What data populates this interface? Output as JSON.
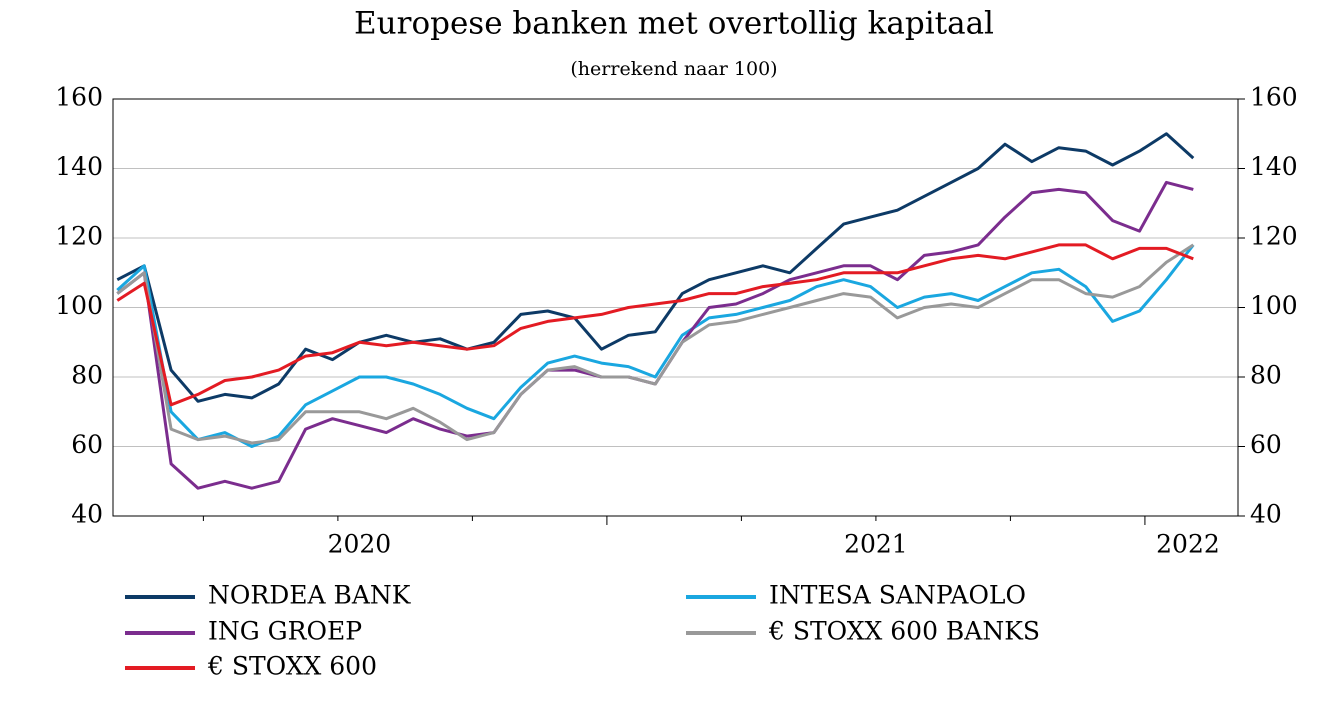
{
  "chart_data": {
    "type": "line",
    "title": "Europese banken met overtollig kapitaal",
    "subtitle": "(herrekend naar 100)",
    "x": [
      2020.09,
      2020.14,
      2020.19,
      2020.24,
      2020.29,
      2020.34,
      2020.39,
      2020.44,
      2020.49,
      2020.54,
      2020.59,
      2020.64,
      2020.69,
      2020.74,
      2020.79,
      2020.84,
      2020.89,
      2020.94,
      2020.99,
      2021.04,
      2021.09,
      2021.14,
      2021.19,
      2021.24,
      2021.29,
      2021.34,
      2021.39,
      2021.44,
      2021.49,
      2021.54,
      2021.59,
      2021.64,
      2021.69,
      2021.74,
      2021.79,
      2021.84,
      2021.89,
      2021.94,
      2021.99,
      2022.04,
      2022.09
    ],
    "series": [
      {
        "name": "NORDEA BANK",
        "color": "#0d3a66",
        "values": [
          108,
          112,
          82,
          73,
          75,
          74,
          78,
          88,
          85,
          90,
          92,
          90,
          91,
          88,
          90,
          98,
          99,
          97,
          88,
          92,
          93,
          104,
          108,
          110,
          112,
          110,
          117,
          124,
          126,
          128,
          132,
          136,
          140,
          147,
          142,
          146,
          145,
          141,
          145,
          150,
          143
        ]
      },
      {
        "name": "INTESA SANPAOLO",
        "color": "#1aa7e0",
        "values": [
          105,
          112,
          70,
          62,
          64,
          60,
          63,
          72,
          76,
          80,
          80,
          78,
          75,
          71,
          68,
          77,
          84,
          86,
          84,
          83,
          80,
          92,
          97,
          98,
          100,
          102,
          106,
          108,
          106,
          100,
          103,
          104,
          102,
          106,
          110,
          111,
          106,
          96,
          99,
          108,
          118
        ]
      },
      {
        "name": "ING GROEP",
        "color": "#7b2d8e",
        "values": [
          104,
          110,
          55,
          48,
          50,
          48,
          50,
          65,
          68,
          66,
          64,
          68,
          65,
          63,
          64,
          75,
          82,
          82,
          80,
          80,
          78,
          90,
          100,
          101,
          104,
          108,
          110,
          112,
          112,
          108,
          115,
          116,
          118,
          126,
          133,
          134,
          133,
          125,
          122,
          136,
          134
        ]
      },
      {
        "name": "€ STOXX 600 BANKS",
        "color": "#999999",
        "values": [
          104,
          110,
          65,
          62,
          63,
          61,
          62,
          70,
          70,
          70,
          68,
          71,
          67,
          62,
          64,
          75,
          82,
          83,
          80,
          80,
          78,
          90,
          95,
          96,
          98,
          100,
          102,
          104,
          103,
          97,
          100,
          101,
          100,
          104,
          108,
          108,
          104,
          103,
          106,
          113,
          118
        ]
      },
      {
        "name": "€ STOXX 600",
        "color": "#e31b23",
        "values": [
          102,
          107,
          72,
          75,
          79,
          80,
          82,
          86,
          87,
          90,
          89,
          90,
          89,
          88,
          89,
          94,
          96,
          97,
          98,
          100,
          101,
          102,
          104,
          104,
          106,
          107,
          108,
          110,
          110,
          110,
          112,
          114,
          115,
          114,
          116,
          118,
          118,
          114,
          117,
          117,
          114
        ]
      }
    ],
    "xlim": [
      2020.082,
      2022.173
    ],
    "xticks": [
      {
        "value": 2020.54,
        "label": "2020"
      },
      {
        "value": 2021.5,
        "label": "2021"
      },
      {
        "value": 2022.08,
        "label": "2022"
      }
    ],
    "xminor_ticks": [
      2020.25,
      2020.5,
      2020.75,
      2021,
      2021.25,
      2021.5,
      2021.75,
      2022
    ],
    "ylim": [
      40,
      160
    ],
    "yticks": [
      40,
      60,
      80,
      100,
      120,
      140,
      160
    ],
    "y2lim": [
      40,
      160
    ],
    "y2ticks": [
      40,
      60,
      80,
      100,
      120,
      140,
      160
    ],
    "grid": true
  }
}
